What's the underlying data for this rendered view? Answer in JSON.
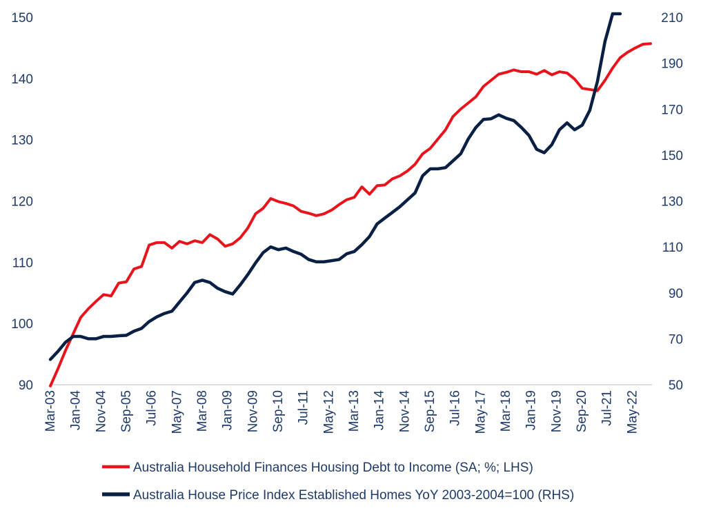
{
  "chart_data": {
    "type": "line",
    "title": "",
    "xlabel": "",
    "x_tick_labels": [
      "Mar-03",
      "Jan-04",
      "Nov-04",
      "Sep-05",
      "Jul-06",
      "May-07",
      "Mar-08",
      "Jan-09",
      "Nov-09",
      "Sep-10",
      "Jul-11",
      "May-12",
      "Mar-13",
      "Jan-14",
      "Nov-14",
      "Sep-15",
      "Jul-16",
      "May-17",
      "Mar-18",
      "Jan-19",
      "Nov-19",
      "Sep-20",
      "Jul-21",
      "May-22"
    ],
    "y_left": {
      "range": [
        90,
        150
      ],
      "ticks": [
        90,
        100,
        110,
        120,
        130,
        140,
        150
      ]
    },
    "y_right": {
      "range": [
        50,
        210
      ],
      "ticks": [
        50,
        70,
        90,
        110,
        130,
        150,
        170,
        190,
        210
      ]
    },
    "grid": false,
    "legend_position": "bottom",
    "series": [
      {
        "name": "Australia Household Finances Housing Debt to Income (SA; %; LHS)",
        "color": "#e8141b",
        "axis": "left",
        "values": [
          89.8,
          92.6,
          95.6,
          98.3,
          101.0,
          102.4,
          103.6,
          104.7,
          104.5,
          106.6,
          106.8,
          108.9,
          109.3,
          112.8,
          113.2,
          113.2,
          112.3,
          113.4,
          113.0,
          113.5,
          113.2,
          114.5,
          113.8,
          112.6,
          113.0,
          114.0,
          115.6,
          117.9,
          118.8,
          120.4,
          119.9,
          119.6,
          119.2,
          118.3,
          118.0,
          117.6,
          117.9,
          118.5,
          119.4,
          120.2,
          120.6,
          122.3,
          121.1,
          122.5,
          122.6,
          123.6,
          124.1,
          124.9,
          126.0,
          127.7,
          128.6,
          130.1,
          131.6,
          133.8,
          135.0,
          136.0,
          137.0,
          138.7,
          139.7,
          140.7,
          141.0,
          141.4,
          141.1,
          141.1,
          140.7,
          141.3,
          140.6,
          141.1,
          140.9,
          139.9,
          138.4,
          138.2,
          138.0,
          139.7,
          141.7,
          143.4,
          144.3,
          145.0,
          145.6,
          145.7
        ]
      },
      {
        "name": "Australia House Price Index Established Homes YoY 2003-2004=100 (RHS)",
        "color": "#0a1f44",
        "axis": "right",
        "values": [
          61.0,
          64.5,
          68.5,
          71.0,
          71.0,
          70.0,
          70.0,
          71.0,
          71.0,
          71.3,
          71.5,
          73.3,
          74.5,
          77.5,
          79.5,
          81.0,
          82.0,
          86.0,
          90.0,
          94.5,
          95.5,
          94.5,
          92.0,
          90.5,
          89.5,
          93.5,
          98.0,
          103.0,
          107.5,
          110.0,
          108.8,
          109.5,
          108.0,
          106.8,
          104.5,
          103.5,
          103.5,
          104.0,
          104.5,
          107.0,
          108.0,
          111.0,
          114.5,
          120.0,
          122.5,
          125.0,
          127.5,
          130.5,
          133.5,
          141.0,
          144.0,
          144.0,
          144.5,
          147.5,
          150.5,
          157.0,
          162.0,
          165.5,
          165.8,
          167.5,
          166.0,
          165.0,
          162.0,
          158.5,
          152.5,
          151.0,
          154.5,
          161.0,
          164.0,
          161.0,
          163.0,
          169.5,
          182.0,
          199.5,
          214.0,
          224.5
        ]
      }
    ]
  }
}
